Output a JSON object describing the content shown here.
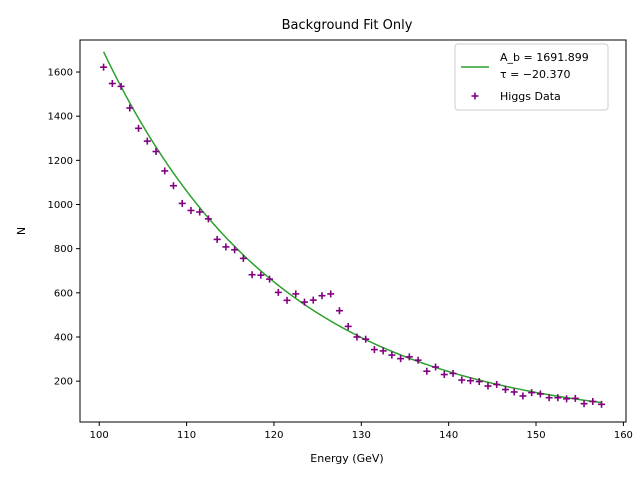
{
  "chart_data": {
    "type": "scatter",
    "title": "Background Fit Only",
    "xlabel": "Energy (GeV)",
    "ylabel": "N",
    "xlim": [
      97.8,
      160.3
    ],
    "ylim": [
      15,
      1745
    ],
    "xticks": [
      100,
      110,
      120,
      130,
      140,
      150,
      160
    ],
    "yticks": [
      200,
      400,
      600,
      800,
      1000,
      1200,
      1400,
      1600
    ],
    "grid": false,
    "legend_position": "top-right",
    "colors": {
      "fit": "#2ca02c",
      "data": "#800080"
    },
    "series": [
      {
        "name": "Higgs Data",
        "kind": "scatter",
        "marker": "plus",
        "x": [
          100.5,
          101.5,
          102.5,
          103.5,
          104.5,
          105.5,
          106.5,
          107.5,
          108.5,
          109.5,
          110.5,
          111.5,
          112.5,
          113.5,
          114.5,
          115.5,
          116.5,
          117.5,
          118.5,
          119.5,
          120.5,
          121.5,
          122.5,
          123.5,
          124.5,
          125.5,
          126.5,
          127.5,
          128.5,
          129.5,
          130.5,
          131.5,
          132.5,
          133.5,
          134.5,
          135.5,
          136.5,
          137.5,
          138.5,
          139.5,
          140.5,
          141.5,
          142.5,
          143.5,
          144.5,
          145.5,
          146.5,
          147.5,
          148.5,
          149.5,
          150.5,
          151.5,
          152.5,
          153.5,
          154.5,
          155.5,
          156.5,
          157.5
        ],
        "y": [
          1622,
          1548,
          1535,
          1437,
          1345,
          1287,
          1240,
          1152,
          1085,
          1005,
          973,
          966,
          935,
          842,
          808,
          795,
          756,
          682,
          680,
          662,
          602,
          566,
          595,
          558,
          567,
          587,
          595,
          519,
          448,
          400,
          390,
          343,
          337,
          318,
          302,
          310,
          295,
          245,
          264,
          230,
          235,
          205,
          202,
          198,
          178,
          185,
          162,
          151,
          133,
          148,
          142,
          125,
          125,
          120,
          122,
          98,
          108,
          95
        ]
      },
      {
        "name": "fit",
        "kind": "line",
        "A_b": 1691.899,
        "tau": -20.37,
        "x_range": [
          100.5,
          157.5
        ]
      }
    ],
    "legend": {
      "fit_line1": "A_b = 1691.899",
      "fit_line2": "τ = −20.370",
      "data": "Higgs Data"
    }
  }
}
